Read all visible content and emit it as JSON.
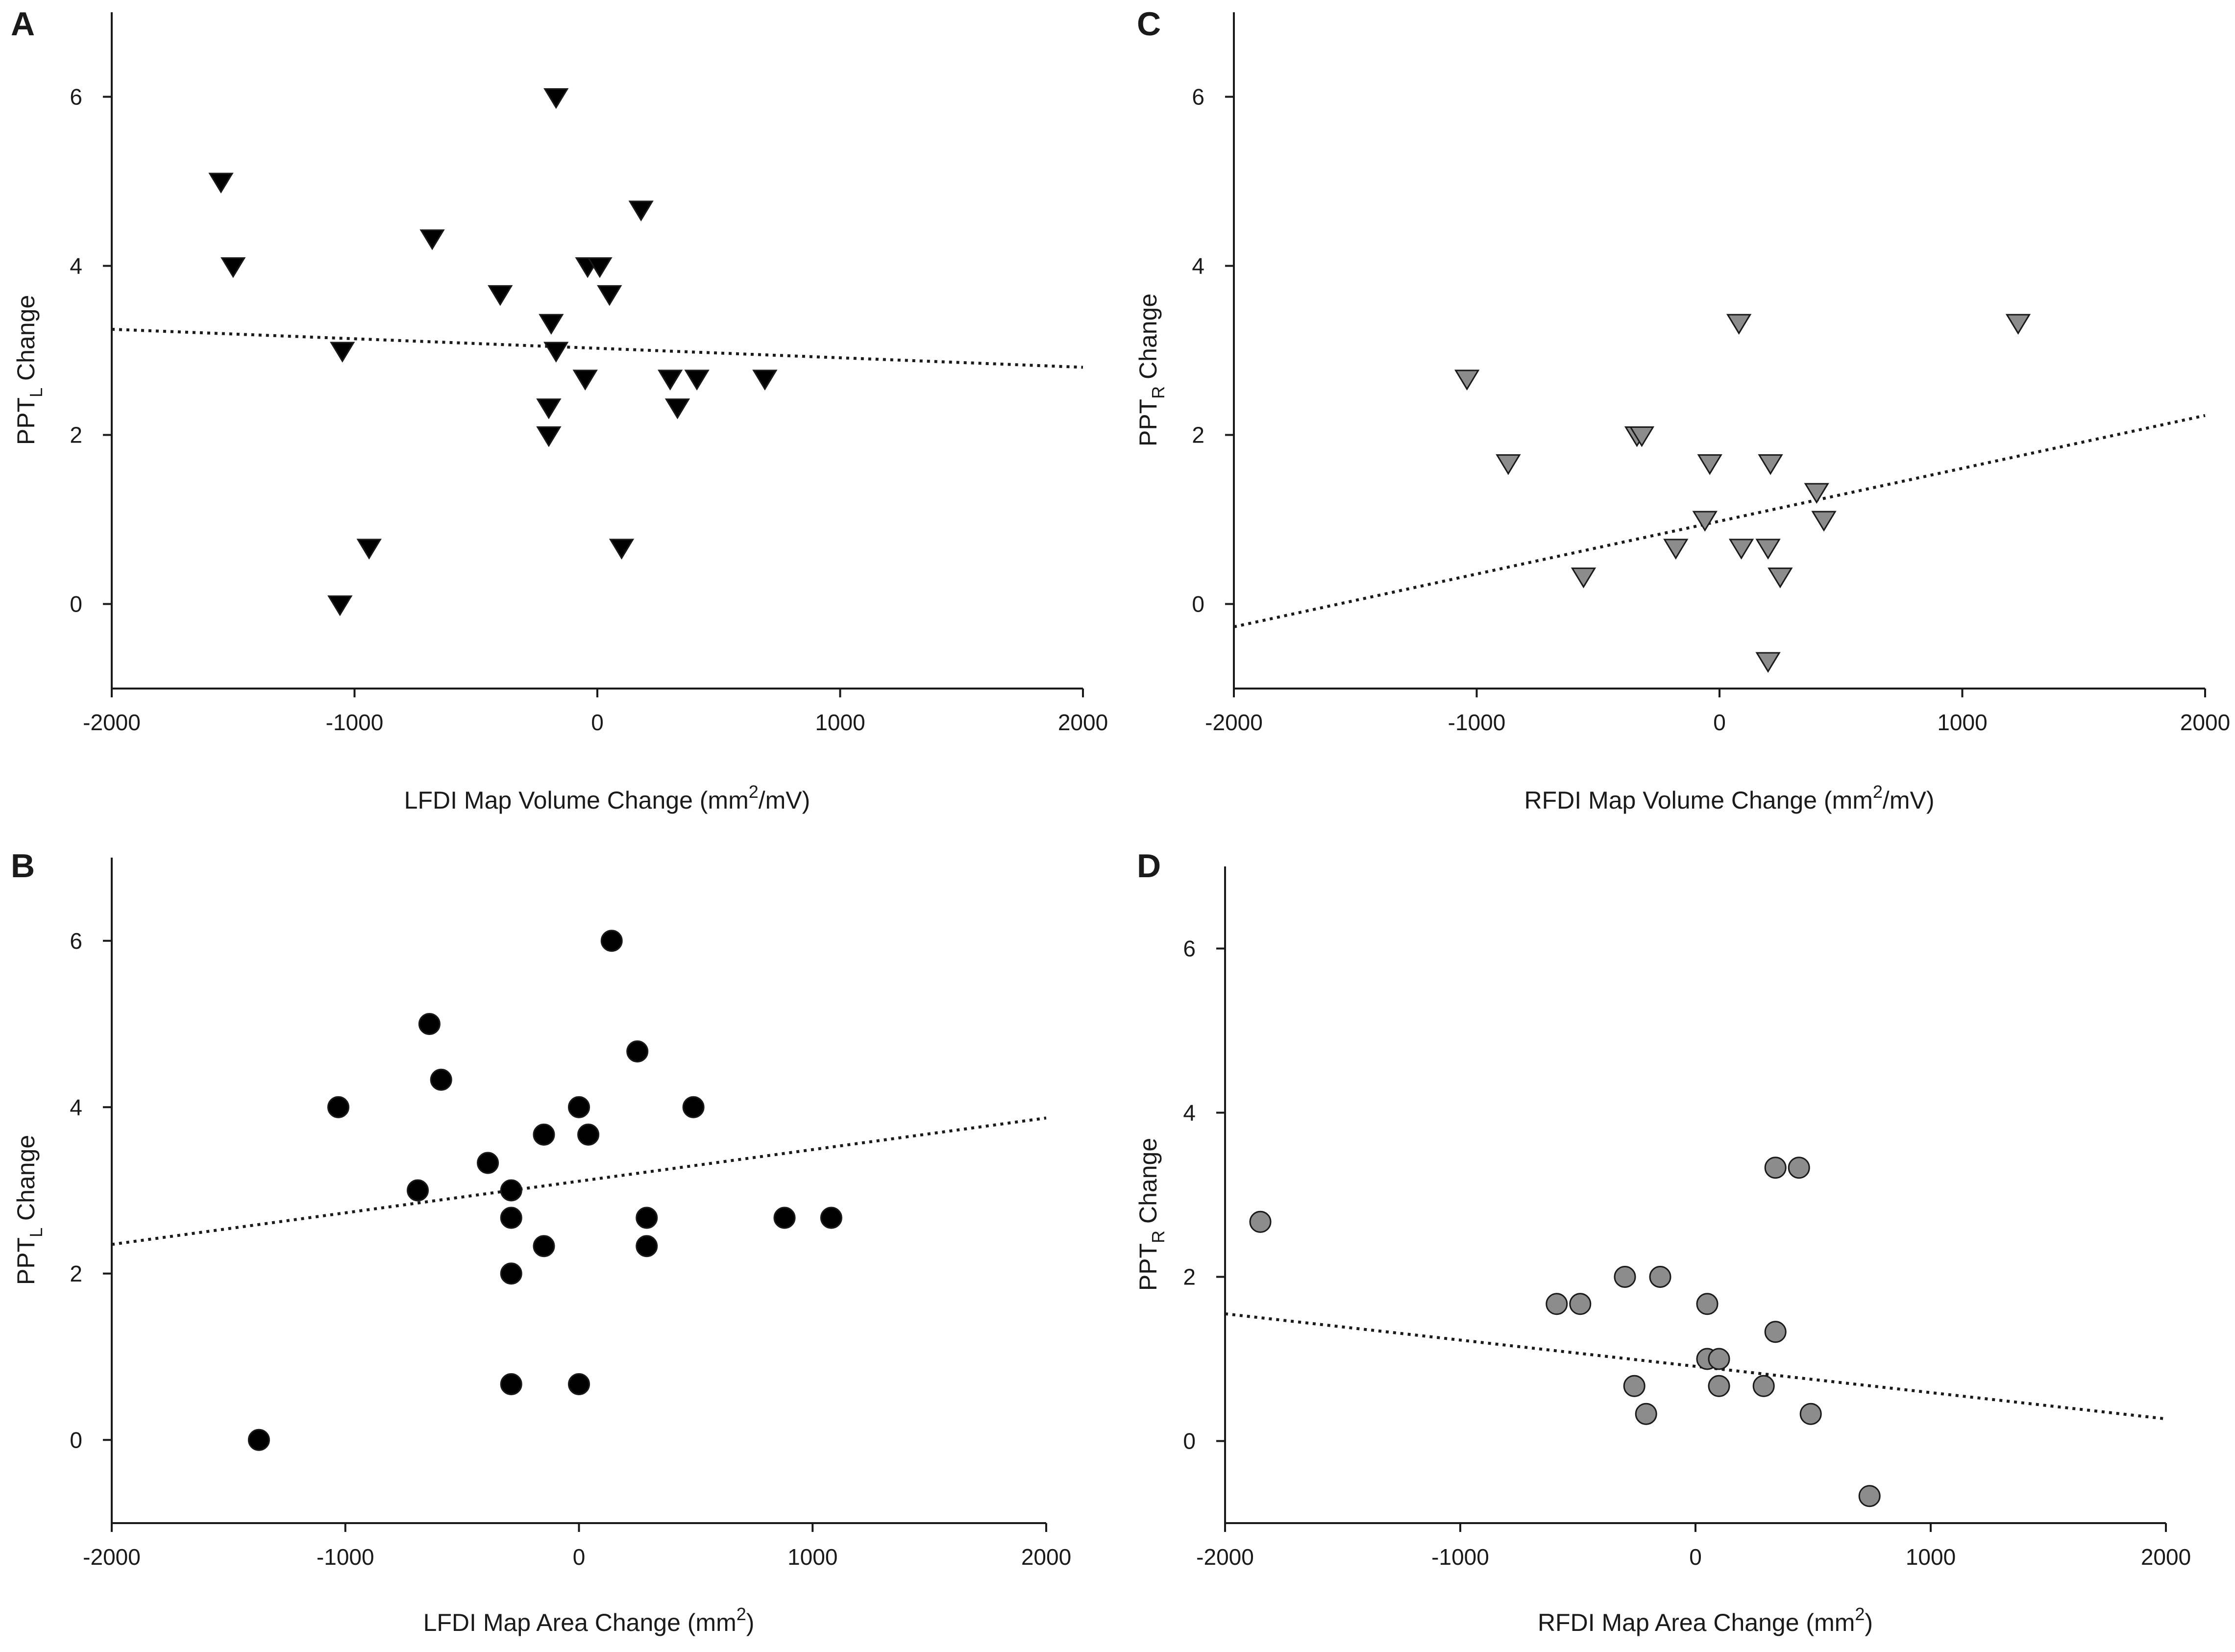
{
  "chart_data": [
    {
      "panel": "A",
      "type": "scatter",
      "marker": "triangle-down",
      "marker_color": "#000000",
      "xlabel": {
        "main": "LFDI Map Volume Change (mm",
        "sup": "2",
        "tail": "/mV)"
      },
      "ylabel": {
        "main": "PPT",
        "sub": "L",
        "tail": " Change"
      },
      "xlim": [
        -2000,
        2000
      ],
      "ylim": [
        -1,
        7
      ],
      "xticks": [
        -2000,
        -1000,
        0,
        1000,
        2000
      ],
      "yticks": [
        0,
        2,
        4,
        6
      ],
      "xtick_labels": [
        "-2000",
        "-1000",
        "0",
        "1000",
        "2000"
      ],
      "ytick_labels": [
        "0",
        "2",
        "4",
        "6"
      ],
      "points": [
        [
          -1550,
          5.0
        ],
        [
          -1500,
          4.0
        ],
        [
          -1050,
          3.0
        ],
        [
          -1060,
          0.0
        ],
        [
          -940,
          0.67
        ],
        [
          -680,
          4.33
        ],
        [
          -400,
          3.67
        ],
        [
          -190,
          3.33
        ],
        [
          -170,
          3.0
        ],
        [
          -200,
          2.33
        ],
        [
          -200,
          2.0
        ],
        [
          -170,
          6.0
        ],
        [
          -40,
          4.0
        ],
        [
          10,
          4.0
        ],
        [
          50,
          3.67
        ],
        [
          -50,
          2.67
        ],
        [
          180,
          4.67
        ],
        [
          100,
          0.67
        ],
        [
          300,
          2.67
        ],
        [
          330,
          2.33
        ],
        [
          410,
          2.67
        ],
        [
          690,
          2.67
        ]
      ],
      "fit_line": {
        "x": [
          -2000,
          2000
        ],
        "y": [
          3.25,
          2.8
        ]
      }
    },
    {
      "panel": "B",
      "type": "scatter",
      "marker": "circle",
      "marker_color": "#000000",
      "xlabel": {
        "main": "LFDI Map Area Change (mm",
        "sup": "2",
        "tail": ")"
      },
      "ylabel": {
        "main": "PPT",
        "sub": "L",
        "tail": " Change"
      },
      "xlim": [
        -2000,
        2000
      ],
      "ylim": [
        -1,
        7
      ],
      "xticks": [
        -2000,
        -1000,
        0,
        1000,
        2000
      ],
      "yticks": [
        0,
        2,
        4,
        6
      ],
      "xtick_labels": [
        "-2000",
        "-1000",
        "0",
        "1000",
        "2000"
      ],
      "ytick_labels": [
        "0",
        "2",
        "4",
        "6"
      ],
      "points": [
        [
          -1370,
          0.0
        ],
        [
          -1030,
          4.0
        ],
        [
          -690,
          3.0
        ],
        [
          -640,
          5.0
        ],
        [
          -590,
          4.33
        ],
        [
          -390,
          3.33
        ],
        [
          -290,
          3.0
        ],
        [
          -290,
          2.67
        ],
        [
          -290,
          2.0
        ],
        [
          -290,
          0.67
        ],
        [
          -150,
          3.67
        ],
        [
          -150,
          2.33
        ],
        [
          0,
          4.0
        ],
        [
          40,
          3.67
        ],
        [
          0,
          0.67
        ],
        [
          140,
          6.0
        ],
        [
          250,
          4.67
        ],
        [
          290,
          2.67
        ],
        [
          290,
          2.33
        ],
        [
          490,
          4.0
        ],
        [
          880,
          2.67
        ],
        [
          1080,
          2.67
        ]
      ],
      "fit_line": {
        "x": [
          -2000,
          2000
        ],
        "y": [
          2.35,
          3.87
        ]
      }
    },
    {
      "panel": "C",
      "type": "scatter",
      "marker": "triangle-down",
      "marker_color": "#8c8c8c",
      "xlabel": {
        "main": "RFDI Map Volume Change (mm",
        "sup": "2",
        "tail": "/mV)"
      },
      "ylabel": {
        "main": "PPT",
        "sub": "R",
        "tail": " Change"
      },
      "xlim": [
        -2000,
        2000
      ],
      "ylim": [
        -1,
        7
      ],
      "xticks": [
        -2000,
        -1000,
        0,
        1000,
        2000
      ],
      "yticks": [
        0,
        2,
        4,
        6
      ],
      "xtick_labels": [
        "-2000",
        "-1000",
        "0",
        "1000",
        "2000"
      ],
      "ytick_labels": [
        "0",
        "2",
        "4",
        "6"
      ],
      "points": [
        [
          -1040,
          2.67
        ],
        [
          -870,
          1.67
        ],
        [
          -560,
          0.33
        ],
        [
          -340,
          2.0
        ],
        [
          -320,
          2.0
        ],
        [
          -180,
          0.67
        ],
        [
          -60,
          1.0
        ],
        [
          -40,
          1.67
        ],
        [
          80,
          3.33
        ],
        [
          90,
          0.67
        ],
        [
          200,
          0.67
        ],
        [
          210,
          1.67
        ],
        [
          200,
          -0.67
        ],
        [
          250,
          0.33
        ],
        [
          400,
          1.33
        ],
        [
          430,
          1.0
        ],
        [
          1230,
          3.33
        ]
      ],
      "fit_line": {
        "x": [
          -2000,
          2000
        ],
        "y": [
          -0.27,
          2.23
        ]
      }
    },
    {
      "panel": "D",
      "type": "scatter",
      "marker": "circle",
      "marker_color": "#8c8c8c",
      "xlabel": {
        "main": "RFDI Map Area Change (mm",
        "sup": "2",
        "tail": ")"
      },
      "ylabel": {
        "main": "PPT",
        "sub": "R",
        "tail": " Change"
      },
      "xlim": [
        -2000,
        2000
      ],
      "ylim": [
        -1,
        7
      ],
      "xticks": [
        -2000,
        -1000,
        0,
        1000,
        2000
      ],
      "yticks": [
        0,
        2,
        4,
        6
      ],
      "xtick_labels": [
        "-2000",
        "-1000",
        "0",
        "1000",
        "2000"
      ],
      "ytick_labels": [
        "0",
        "2",
        "4",
        "6"
      ],
      "points": [
        [
          -1850,
          2.67
        ],
        [
          -590,
          1.67
        ],
        [
          -490,
          1.67
        ],
        [
          -300,
          2.0
        ],
        [
          -150,
          2.0
        ],
        [
          -260,
          0.67
        ],
        [
          -210,
          0.33
        ],
        [
          50,
          1.67
        ],
        [
          50,
          1.0
        ],
        [
          100,
          1.0
        ],
        [
          100,
          0.67
        ],
        [
          290,
          0.67
        ],
        [
          340,
          3.33
        ],
        [
          440,
          3.33
        ],
        [
          340,
          1.33
        ],
        [
          490,
          0.33
        ],
        [
          740,
          -0.67
        ]
      ],
      "fit_line": {
        "x": [
          -2000,
          2000
        ],
        "y": [
          1.55,
          0.27
        ]
      }
    }
  ]
}
